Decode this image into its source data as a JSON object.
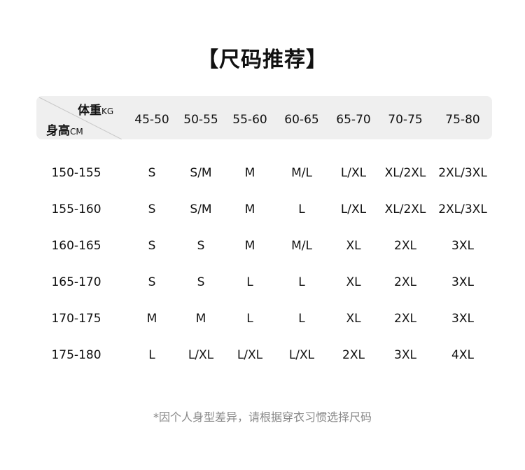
{
  "title": "【尺码推荐】",
  "header": {
    "weight_label": "体重",
    "weight_unit": "KG",
    "height_label": "身高",
    "height_unit": "CM",
    "columns": [
      "45-50",
      "50-55",
      "55-60",
      "60-65",
      "65-70",
      "70-75",
      "75-80"
    ]
  },
  "rows": [
    {
      "height": "150-155",
      "sizes": [
        "S",
        "S/M",
        "M",
        "M/L",
        "L/XL",
        "XL/2XL",
        "2XL/3XL"
      ]
    },
    {
      "height": "155-160",
      "sizes": [
        "S",
        "S/M",
        "M",
        "L",
        "L/XL",
        "XL/2XL",
        "2XL/3XL"
      ]
    },
    {
      "height": "160-165",
      "sizes": [
        "S",
        "S",
        "M",
        "M/L",
        "XL",
        "2XL",
        "3XL"
      ]
    },
    {
      "height": "165-170",
      "sizes": [
        "S",
        "S",
        "L",
        "L",
        "XL",
        "2XL",
        "3XL"
      ]
    },
    {
      "height": "170-175",
      "sizes": [
        "M",
        "M",
        "L",
        "L",
        "XL",
        "2XL",
        "3XL"
      ]
    },
    {
      "height": "175-180",
      "sizes": [
        "L",
        "L/XL",
        "L/XL",
        "L/XL",
        "2XL",
        "3XL",
        "4XL"
      ]
    }
  ],
  "note": "*因个人身型差异，请根据穿衣习惯选择尺码",
  "colors": {
    "header_bg": "#efefef",
    "note": "#888888"
  }
}
